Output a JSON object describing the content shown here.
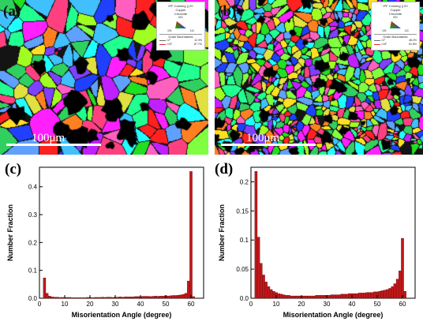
{
  "panels": {
    "a": {
      "letter": "(a)",
      "scale": "100μm",
      "legend": {
        "title_lines": [
          "IPF Coloring || Z0",
          "Copper",
          "Chromite"
        ],
        "corner_top": "001",
        "corner_left": "101",
        "corner_right": "111",
        "boundaries_title": "Grain Boundaries",
        "row1": {
          "label": ">2°",
          "value": "12.3%"
        },
        "row2": {
          "label": ">15°",
          "value": "87.7%"
        }
      }
    },
    "b": {
      "letter": "(b)",
      "scale": "100μm",
      "legend": {
        "title_lines": [
          "IPF Coloring || Z0",
          "Copper",
          "Chromite"
        ],
        "corner_top": "001",
        "corner_left": "101",
        "corner_right": "111",
        "boundaries_title": "Grain Boundaries",
        "row1": {
          "label": ">2°",
          "value": "48.2%"
        },
        "row2": {
          "label": ">15°",
          "value": "51.8%"
        }
      }
    },
    "c": {
      "letter": "(c)"
    },
    "d": {
      "letter": "(d)"
    }
  },
  "colors": {
    "bar_fill": "#c0181b",
    "bar_stroke": "#5a0000",
    "map_background": "#000000"
  },
  "chart_data": [
    {
      "type": "bar",
      "panel": "c",
      "xlabel": "Misorientation Angle (degree)",
      "ylabel": "Number Fraction",
      "xlim": [
        0,
        65
      ],
      "ylim": [
        0,
        0.47
      ],
      "xticks": [
        0,
        10,
        20,
        30,
        40,
        50,
        60
      ],
      "yticks": [
        0.0,
        0.1,
        0.2,
        0.3,
        0.4
      ],
      "bin_width": 1,
      "x": [
        2,
        3,
        4,
        5,
        6,
        7,
        8,
        9,
        10,
        11,
        12,
        13,
        14,
        15,
        16,
        17,
        18,
        19,
        20,
        21,
        22,
        23,
        24,
        25,
        26,
        27,
        28,
        29,
        30,
        31,
        32,
        33,
        34,
        35,
        36,
        37,
        38,
        39,
        40,
        41,
        42,
        43,
        44,
        45,
        46,
        47,
        48,
        49,
        50,
        51,
        52,
        53,
        54,
        55,
        56,
        57,
        58,
        59,
        60,
        61
      ],
      "values": [
        0.073,
        0.018,
        0.008,
        0.005,
        0.004,
        0.004,
        0.003,
        0.003,
        0.003,
        0.003,
        0.003,
        0.002,
        0.002,
        0.002,
        0.002,
        0.002,
        0.002,
        0.003,
        0.003,
        0.002,
        0.003,
        0.003,
        0.003,
        0.004,
        0.003,
        0.004,
        0.004,
        0.003,
        0.004,
        0.004,
        0.005,
        0.004,
        0.005,
        0.005,
        0.005,
        0.005,
        0.006,
        0.006,
        0.006,
        0.007,
        0.007,
        0.007,
        0.006,
        0.007,
        0.008,
        0.007,
        0.008,
        0.008,
        0.009,
        0.008,
        0.009,
        0.01,
        0.01,
        0.011,
        0.012,
        0.014,
        0.018,
        0.062,
        0.455,
        0.006
      ]
    },
    {
      "type": "bar",
      "panel": "d",
      "xlabel": "Misorientation Angle (degree)",
      "ylabel": "Number Fraction",
      "xlim": [
        0,
        65
      ],
      "ylim": [
        0,
        0.225
      ],
      "xticks": [
        0,
        10,
        20,
        30,
        40,
        50,
        60
      ],
      "yticks": [
        0.0,
        0.05,
        0.1,
        0.15,
        0.2
      ],
      "bin_width": 1,
      "x": [
        2,
        3,
        4,
        5,
        6,
        7,
        8,
        9,
        10,
        11,
        12,
        13,
        14,
        15,
        16,
        17,
        18,
        19,
        20,
        21,
        22,
        23,
        24,
        25,
        26,
        27,
        28,
        29,
        30,
        31,
        32,
        33,
        34,
        35,
        36,
        37,
        38,
        39,
        40,
        41,
        42,
        43,
        44,
        45,
        46,
        47,
        48,
        49,
        50,
        51,
        52,
        53,
        54,
        55,
        56,
        57,
        58,
        59,
        60,
        61
      ],
      "values": [
        0.218,
        0.105,
        0.06,
        0.04,
        0.028,
        0.02,
        0.015,
        0.012,
        0.01,
        0.008,
        0.007,
        0.006,
        0.005,
        0.005,
        0.004,
        0.004,
        0.004,
        0.004,
        0.004,
        0.004,
        0.004,
        0.004,
        0.004,
        0.004,
        0.005,
        0.005,
        0.005,
        0.005,
        0.005,
        0.005,
        0.006,
        0.006,
        0.006,
        0.006,
        0.007,
        0.007,
        0.007,
        0.008,
        0.008,
        0.008,
        0.008,
        0.009,
        0.009,
        0.009,
        0.01,
        0.01,
        0.01,
        0.011,
        0.011,
        0.012,
        0.013,
        0.014,
        0.015,
        0.017,
        0.02,
        0.025,
        0.033,
        0.047,
        0.103,
        0.012
      ]
    }
  ]
}
